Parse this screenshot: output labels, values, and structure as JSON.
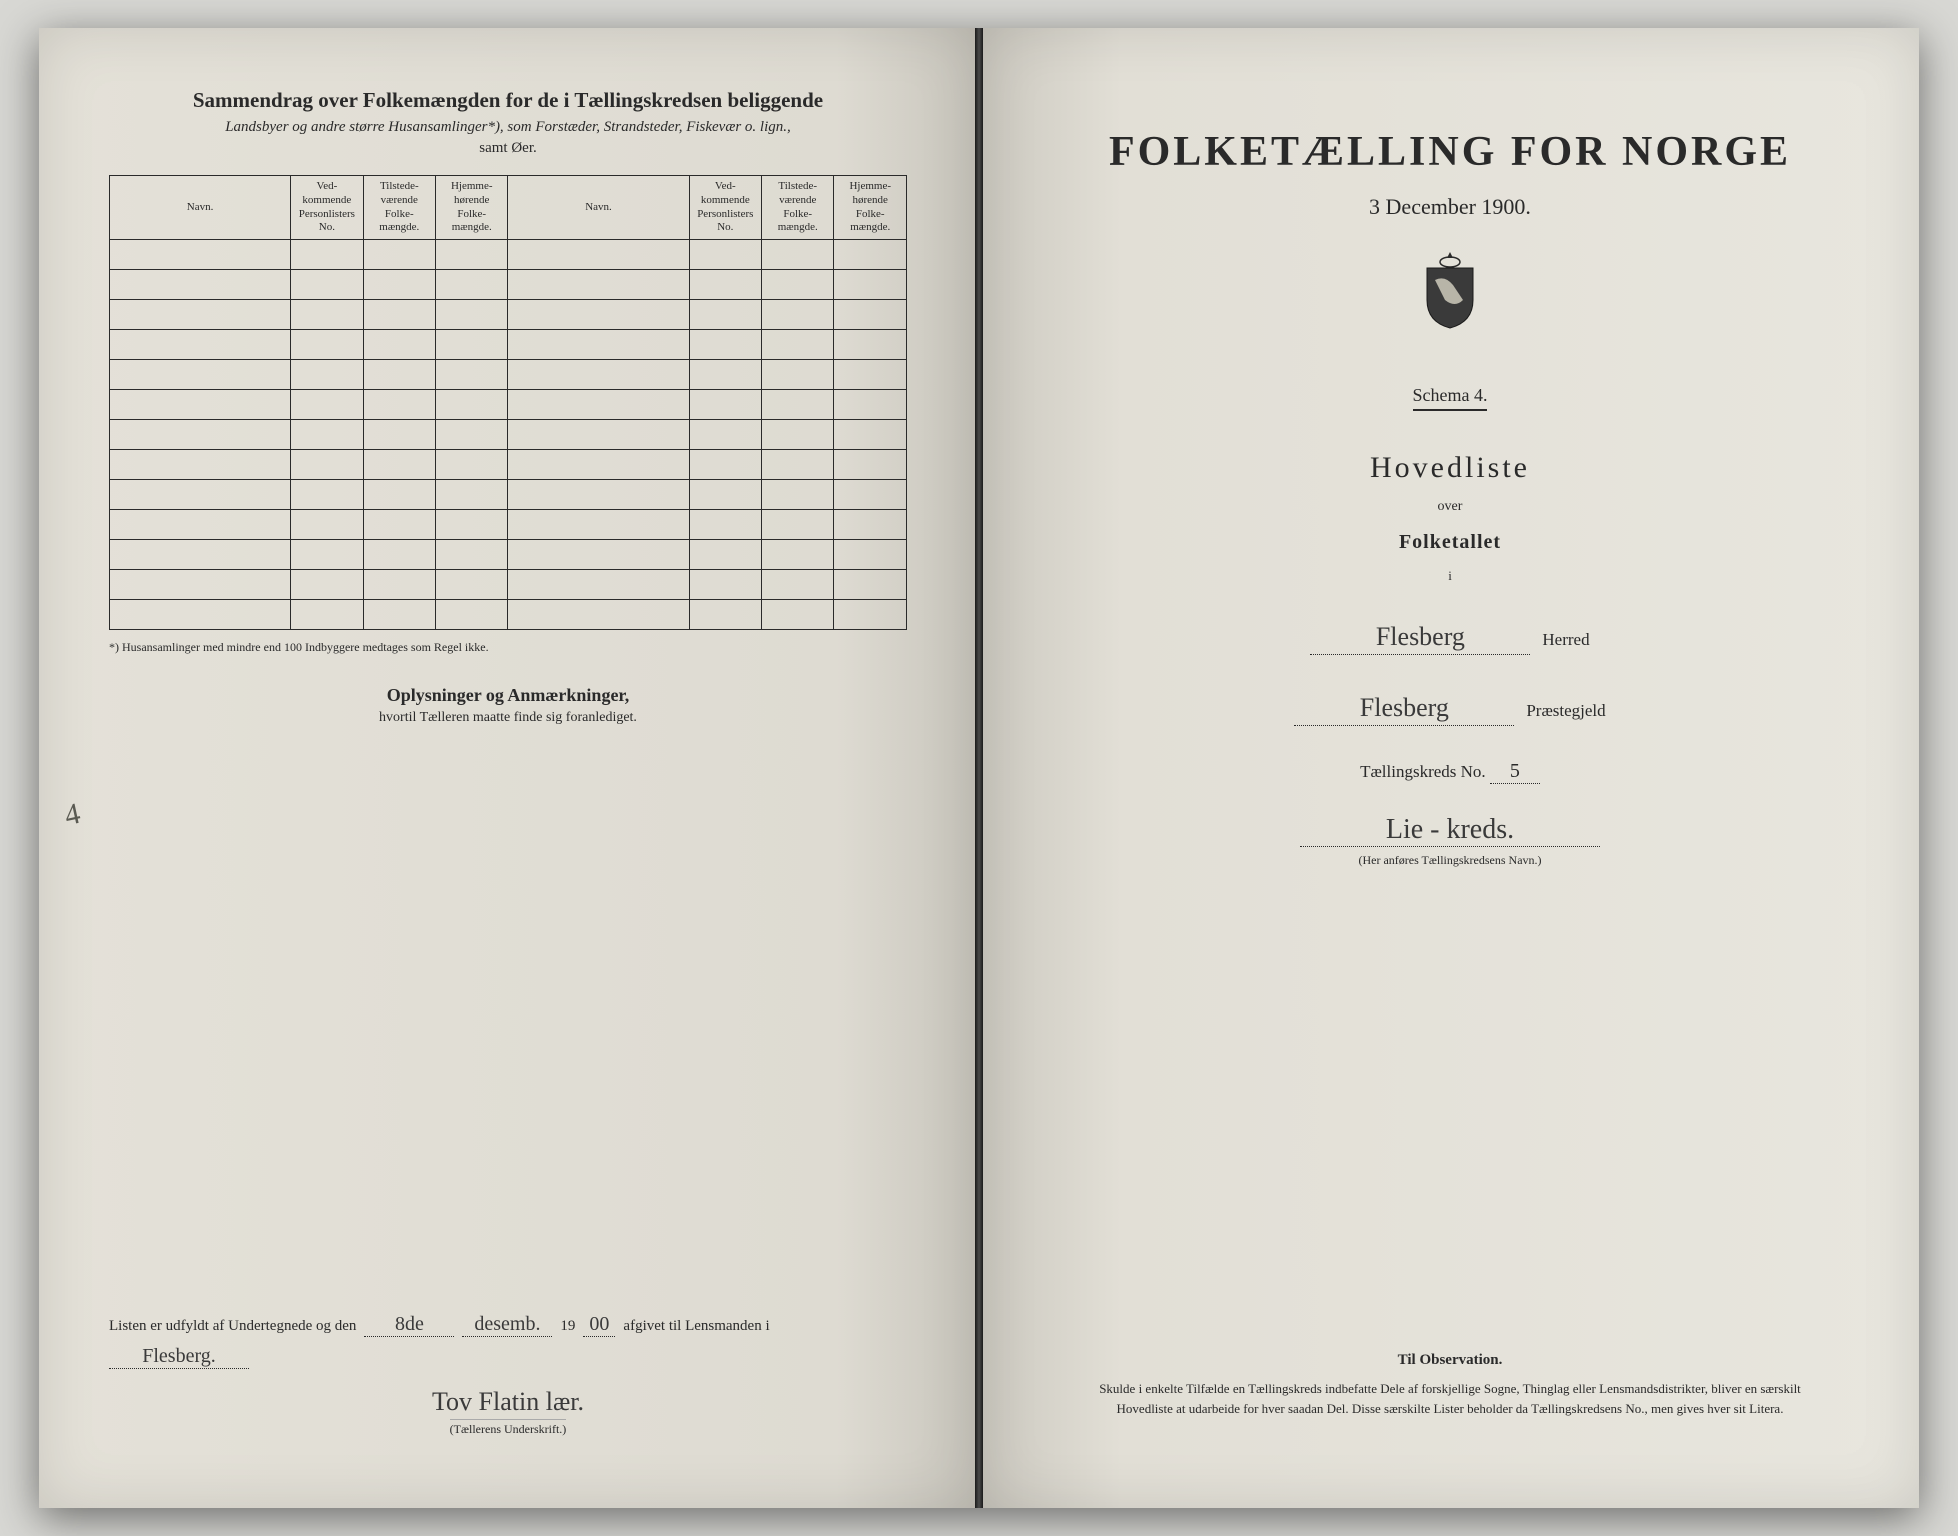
{
  "colors": {
    "page_bg": "#e4e1d8",
    "ink": "#2a2a2a",
    "handwriting": "#3a3a3a",
    "desk_bg": "#d8d8d4"
  },
  "left": {
    "header_title": "Sammendrag over Folkemængden for de i Tællingskredsen beliggende",
    "header_subtitle": "Landsbyer og andre større Husansamlinger*), som Forstæder, Strandsteder, Fiskevær o. lign.,",
    "header_samt": "samt Øer.",
    "table": {
      "columns": [
        "Navn.",
        "Ved-kommende Personlisters No.",
        "Tilstede-værende Folke-mængde.",
        "Hjemme-hørende Folke-mængde.",
        "Navn.",
        "Ved-kommende Personlisters No.",
        "Tilstede-værende Folke-mængde.",
        "Hjemme-hørende Folke-mængde."
      ],
      "row_count": 13
    },
    "footnote": "*) Husansamlinger med mindre end 100 Indbyggere medtages som Regel ikke.",
    "oplys_title": "Oplysninger og Anmærkninger,",
    "oplys_sub": "hvortil Tælleren maatte finde sig foranlediget.",
    "margin_number": "4",
    "signature": {
      "prefix": "Listen er udfyldt af Undertegnede og den",
      "date_day": "8de",
      "date_month": "desemb.",
      "year_prefix": "19",
      "year_suffix": "00",
      "mid": "afgivet til Lensmanden i",
      "place": "Flesberg.",
      "signer": "Tov Flatin lær.",
      "caption": "(Tællerens Underskrift.)"
    }
  },
  "right": {
    "main_title": "FOLKETÆLLING FOR NORGE",
    "date": "3 December 1900.",
    "schema": "Schema 4.",
    "hovedliste": "Hovedliste",
    "over": "over",
    "folketallet": "Folketallet",
    "i": "i",
    "herred_value": "Flesberg",
    "herred_label": "Herred",
    "praestegjeld_value": "Flesberg",
    "praestegjeld_label": "Præstegjeld",
    "kreds_label": "Tællingskreds No.",
    "kreds_no": "5",
    "kreds_name": "Lie - kreds.",
    "kreds_caption": "(Her anføres Tællingskredsens Navn.)",
    "observation_title": "Til Observation.",
    "observation_text": "Skulde i enkelte Tilfælde en Tællingskreds indbefatte Dele af forskjellige Sogne, Thinglag eller Lensmandsdistrikter, bliver en særskilt Hovedliste at udarbeide for hver saadan Del. Disse særskilte Lister beholder da Tællingskredsens No., men gives hver sit Litera."
  }
}
